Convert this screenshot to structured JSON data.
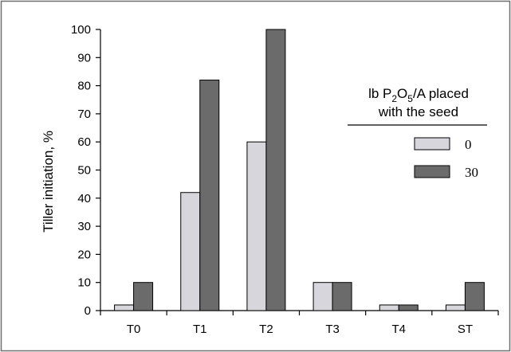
{
  "chart_data": {
    "type": "bar",
    "title": "",
    "xlabel": "",
    "ylabel": "Tiller initiation, %",
    "ylim": [
      0,
      100
    ],
    "yticks": [
      0,
      10,
      20,
      30,
      40,
      50,
      60,
      70,
      80,
      90,
      100
    ],
    "categories": [
      "T0",
      "T1",
      "T2",
      "T3",
      "T4",
      "ST"
    ],
    "series": [
      {
        "name": "0",
        "color": "#d6d6dc",
        "values": [
          2,
          42,
          60,
          10,
          2,
          2
        ]
      },
      {
        "name": "30",
        "color": "#6b6b6b",
        "values": [
          10,
          82,
          100,
          10,
          2,
          10
        ]
      }
    ],
    "legend": {
      "placement": "right",
      "title_prefix": "lb P",
      "title_sub1": "2",
      "title_mid": "O",
      "title_sub2": "5",
      "title_suffix": "/A placed",
      "title_line2": "with the seed"
    },
    "grid": false
  }
}
